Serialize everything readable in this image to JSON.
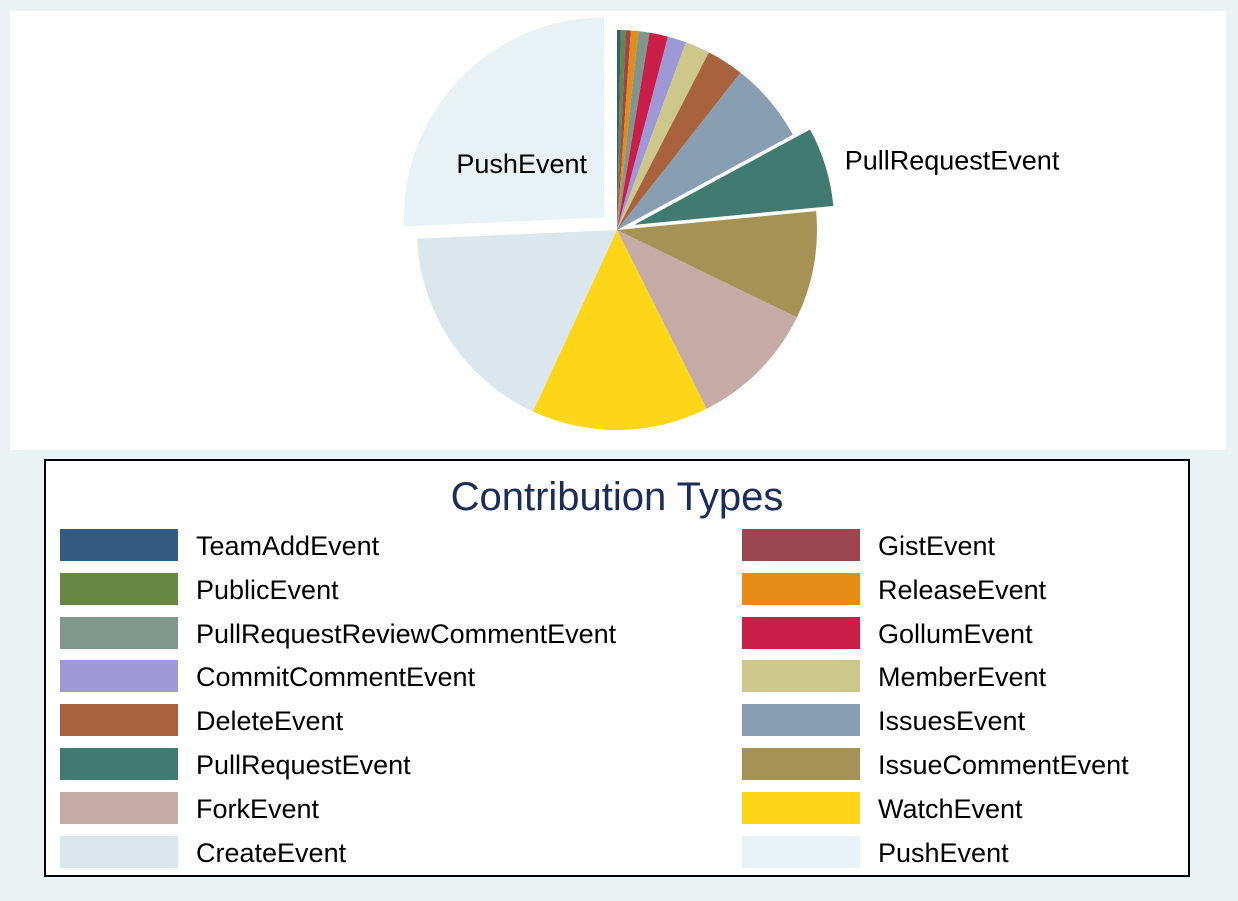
{
  "chart_data": {
    "type": "pie",
    "legend_title": "Contribution Types",
    "legend_position": "bottom",
    "exploded_slices": [
      "PushEvent",
      "PullRequestEvent"
    ],
    "slice_labels_shown": [
      "PushEvent",
      "PullRequestEvent"
    ],
    "slices": [
      {
        "name": "TeamAddEvent",
        "value": 0.3,
        "color": "#335a80"
      },
      {
        "name": "PublicEvent",
        "value": 0.4,
        "color": "#668843"
      },
      {
        "name": "GistEvent",
        "value": 0.4,
        "color": "#9a4550"
      },
      {
        "name": "ReleaseEvent",
        "value": 0.6,
        "color": "#e68a18"
      },
      {
        "name": "PullRequestReviewCommentEvent",
        "value": 0.9,
        "color": "#80978e"
      },
      {
        "name": "GollumEvent",
        "value": 1.5,
        "color": "#c81e48"
      },
      {
        "name": "CommitCommentEvent",
        "value": 1.5,
        "color": "#9e98d6"
      },
      {
        "name": "MemberEvent",
        "value": 2.0,
        "color": "#cdc78a"
      },
      {
        "name": "DeleteEvent",
        "value": 3.0,
        "color": "#a8623e"
      },
      {
        "name": "IssuesEvent",
        "value": 6.5,
        "color": "#889fb3"
      },
      {
        "name": "PullRequestEvent",
        "value": 6.4,
        "color": "#407a70"
      },
      {
        "name": "IssueCommentEvent",
        "value": 8.7,
        "color": "#a69255"
      },
      {
        "name": "ForkEvent",
        "value": 10.4,
        "color": "#c5aaa6"
      },
      {
        "name": "WatchEvent",
        "value": 14.3,
        "color": "#fdd618"
      },
      {
        "name": "CreateEvent",
        "value": 17.4,
        "color": "#dce7ed"
      },
      {
        "name": "PushEvent",
        "value": 25.7,
        "color": "#e8f1f3"
      }
    ],
    "legend": [
      [
        "TeamAddEvent",
        "GistEvent"
      ],
      [
        "PublicEvent",
        "ReleaseEvent"
      ],
      [
        "PullRequestReviewCommentEvent",
        "GollumEvent"
      ],
      [
        "CommitCommentEvent",
        "MemberEvent"
      ],
      [
        "DeleteEvent",
        "IssuesEvent"
      ],
      [
        "PullRequestEvent",
        "IssueCommentEvent"
      ],
      [
        "ForkEvent",
        "WatchEvent"
      ],
      [
        "CreateEvent",
        "PushEvent"
      ]
    ]
  }
}
